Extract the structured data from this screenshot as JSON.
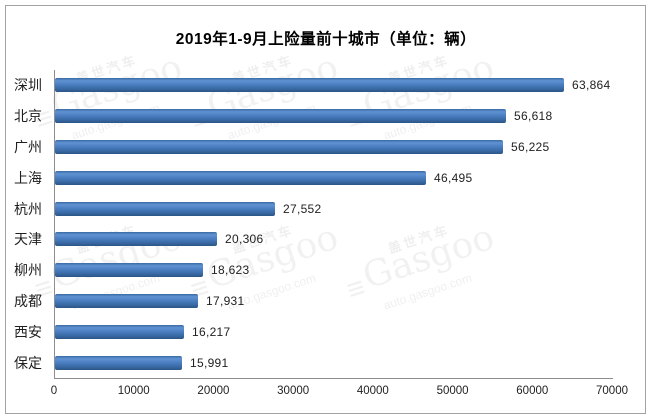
{
  "title": "2019年1-9月上险量前十城市（单位：辆）",
  "watermark": {
    "brand_cn": "盖世汽车",
    "brand_en": "Gasgoo",
    "site": "auto.gasgoo.com",
    "mark": "≡"
  },
  "colors": {
    "bar_edge_top": "#396aa4",
    "bar_light": "#6093d2",
    "bar_mid": "#4a7ec0",
    "bar_dark": "#3a6ba7",
    "bar_edge_bottom": "#2b5586",
    "axis_line": "#8e8e8e",
    "outer_border": "#a2a2a2",
    "text": "#1f1f1f"
  },
  "chart_data": {
    "type": "bar",
    "orientation": "horizontal",
    "title": "2019年1-9月上险量前十城市（单位：辆）",
    "categories": [
      "深圳",
      "北京",
      "广州",
      "上海",
      "杭州",
      "天津",
      "柳州",
      "成都",
      "西安",
      "保定"
    ],
    "values": [
      63864,
      56618,
      56225,
      46495,
      27552,
      20306,
      18623,
      17931,
      16217,
      15991
    ],
    "value_labels": [
      "63,864",
      "56,618",
      "56,225",
      "46,495",
      "27,552",
      "20,306",
      "18,623",
      "17,931",
      "16,217",
      "15,991"
    ],
    "xlim": [
      0,
      70000
    ],
    "x_ticks": [
      "0",
      "10000",
      "20000",
      "30000",
      "40000",
      "50000",
      "60000",
      "70000"
    ],
    "grid": false,
    "legend": false
  }
}
